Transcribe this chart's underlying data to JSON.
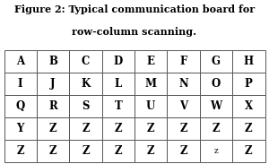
{
  "title_line1": "Figure 2: Typical communication board for",
  "title_line2": "row-column scanning.",
  "grid": [
    [
      "A",
      "B",
      "C",
      "D",
      "E",
      "F",
      "G",
      "H"
    ],
    [
      "I",
      "J",
      "K",
      "L",
      "M",
      "N",
      "O",
      "P"
    ],
    [
      "Q",
      "R",
      "S",
      "T",
      "U",
      "V",
      "W",
      "X"
    ],
    [
      "Y",
      "Z",
      "Z",
      "Z",
      "Z",
      "Z",
      "Z",
      "Z"
    ],
    [
      "Z",
      "Z",
      "Z",
      "Z",
      "Z",
      "Z",
      "z",
      "Z"
    ]
  ],
  "nrows": 5,
  "ncols": 8,
  "font_size": 8.5,
  "title_font_size": 8.0,
  "background_color": "#ffffff",
  "grid_color": "#555555",
  "text_color": "#000000",
  "fig_width": 3.0,
  "fig_height": 1.83
}
